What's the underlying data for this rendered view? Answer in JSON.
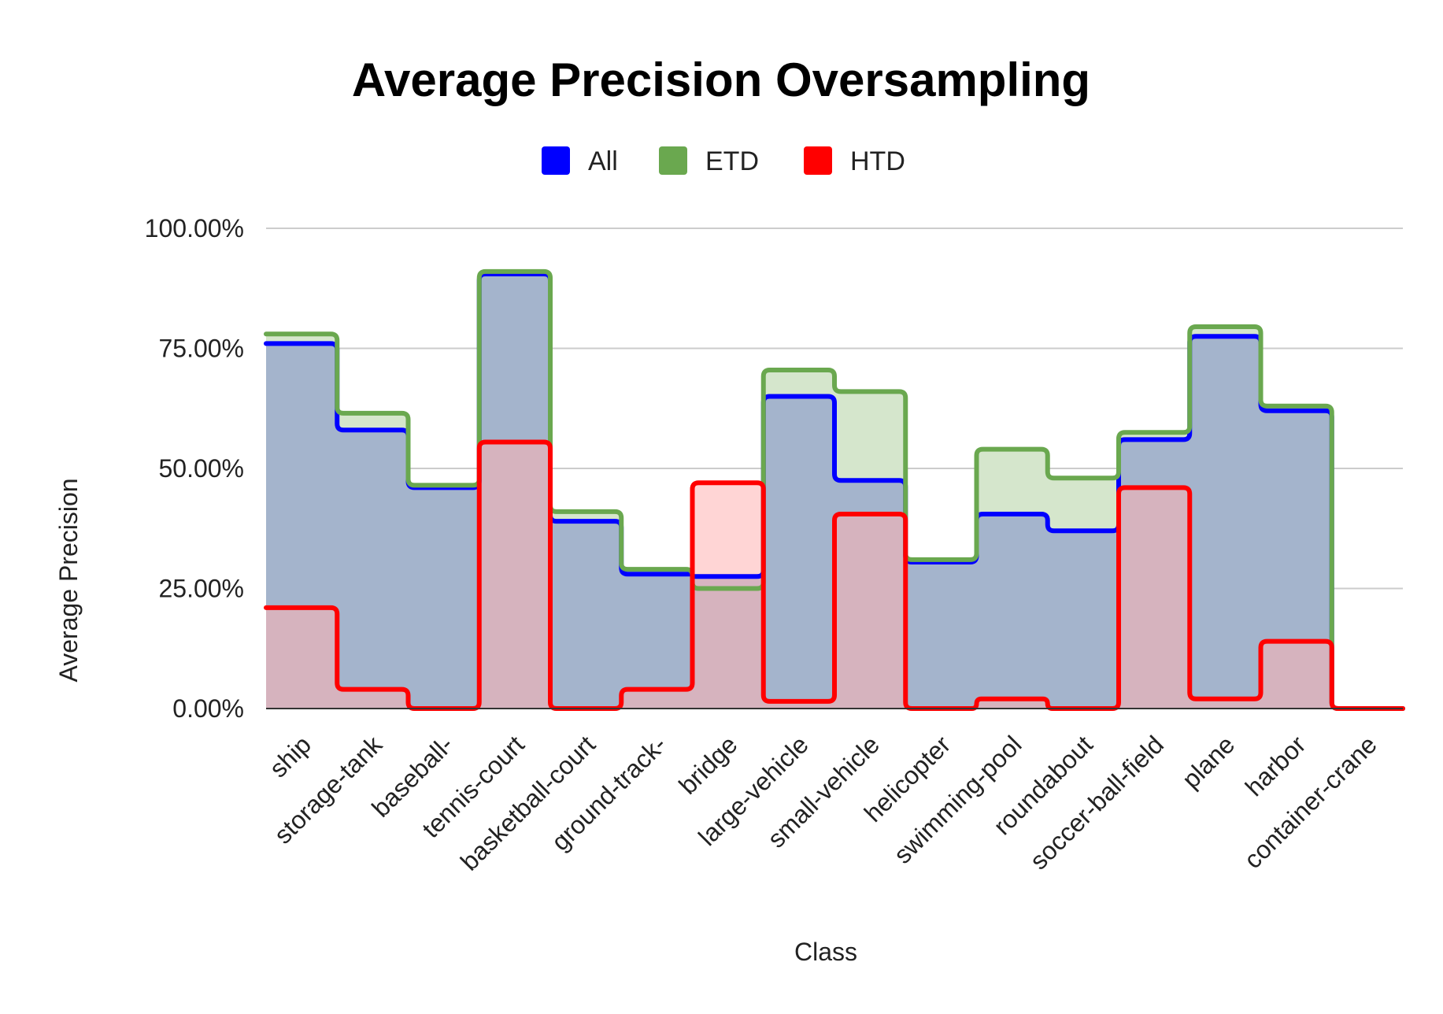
{
  "chart_data": {
    "type": "area",
    "title": "Average Precision Oversampling",
    "xlabel": "Class",
    "ylabel": "Average Precision",
    "ylim": [
      0,
      1
    ],
    "yticks": [
      0,
      0.25,
      0.5,
      0.75,
      1.0
    ],
    "ytick_labels": [
      "0.00%",
      "25.00%",
      "50.00%",
      "75.00%",
      "100.00%"
    ],
    "grid": true,
    "legend_position": "top",
    "step": true,
    "categories": [
      "ship",
      "storage-tank",
      "baseball-",
      "tennis-court",
      "basketball-court",
      "ground-track-",
      "bridge",
      "large-vehicle",
      "small-vehicle",
      "helicopter",
      "swimming-pool",
      "roundabout",
      "soccer-ball-field",
      "plane",
      "harbor",
      "container-crane"
    ],
    "series": [
      {
        "name": "All",
        "color": "#0000ff",
        "fill": "#9fb0cc",
        "values": [
          0.76,
          0.58,
          0.46,
          0.905,
          0.39,
          0.28,
          0.275,
          0.65,
          0.475,
          0.305,
          0.405,
          0.37,
          0.56,
          0.775,
          0.62,
          0.0
        ]
      },
      {
        "name": "ETD",
        "color": "#6aa84f",
        "fill": "#d5e6cc",
        "values": [
          0.78,
          0.615,
          0.465,
          0.91,
          0.41,
          0.29,
          0.25,
          0.705,
          0.66,
          0.31,
          0.54,
          0.48,
          0.575,
          0.795,
          0.63,
          0.0
        ]
      },
      {
        "name": "HTD",
        "color": "#ff0000",
        "fill": "#ffb3b3",
        "values": [
          0.21,
          0.04,
          0.0,
          0.555,
          0.0,
          0.04,
          0.47,
          0.015,
          0.405,
          0.0,
          0.02,
          0.0,
          0.46,
          0.02,
          0.14,
          0.0
        ]
      }
    ]
  }
}
